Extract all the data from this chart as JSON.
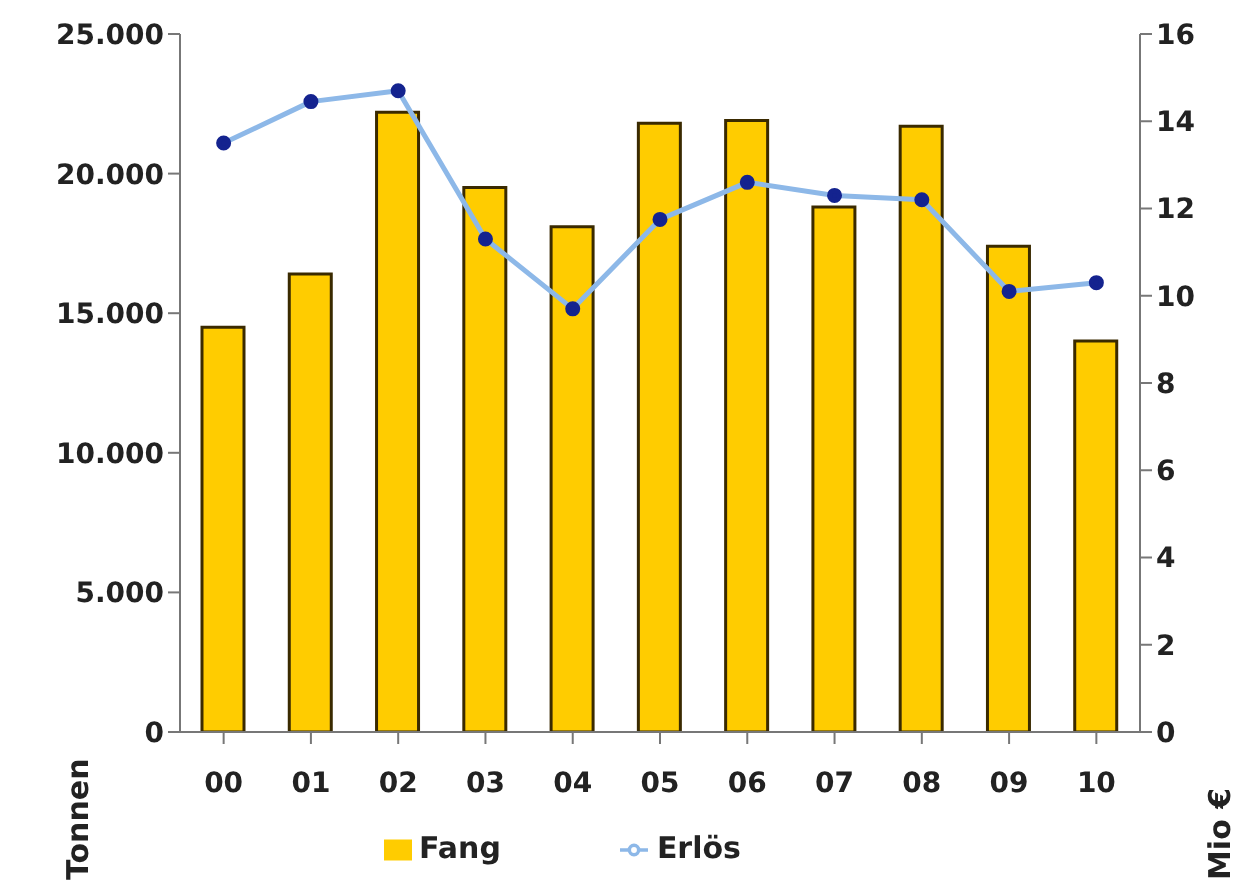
{
  "chart_data": {
    "type": "bar",
    "categories": [
      "00",
      "01",
      "02",
      "03",
      "04",
      "05",
      "06",
      "07",
      "08",
      "09",
      "10"
    ],
    "series": [
      {
        "name": "Fang",
        "color": "#ffcc00",
        "values": [
          14500,
          16400,
          22200,
          19500,
          18100,
          21800,
          21900,
          18800,
          21700,
          17400,
          14000
        ]
      },
      {
        "name": "Erlös",
        "type": "line",
        "axis": "y2",
        "color": "#8db8e8",
        "marker": "circle",
        "values": [
          13.5,
          14.45,
          14.7,
          11.3,
          9.7,
          11.75,
          12.6,
          12.3,
          12.2,
          10.1,
          10.3
        ]
      }
    ],
    "ylabel": "Tonnen",
    "y2label": "Mio €",
    "ylim": [
      0,
      25000
    ],
    "yticks": [
      {
        "value": 0,
        "label": "0"
      },
      {
        "value": 5000,
        "label": "5.000"
      },
      {
        "value": 10000,
        "label": "10.000"
      },
      {
        "value": 15000,
        "label": "15.000"
      },
      {
        "value": 20000,
        "label": "20.000"
      },
      {
        "value": 25000,
        "label": "25.000"
      }
    ],
    "y2lim": [
      0,
      16
    ],
    "y2ticks": [
      0,
      2,
      4,
      6,
      8,
      10,
      12,
      14,
      16
    ],
    "grid": false,
    "legend": "bottom"
  }
}
